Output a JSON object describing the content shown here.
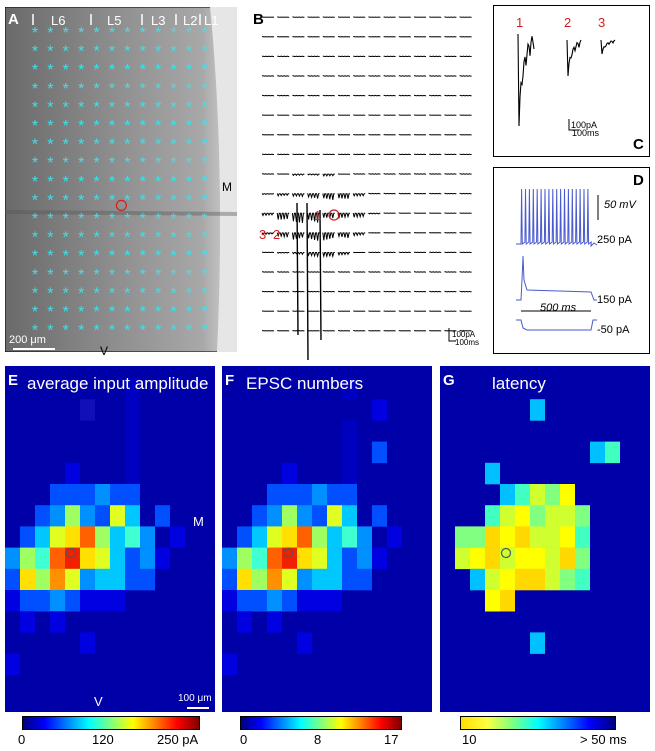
{
  "panels": {
    "A": {
      "label": "A",
      "layers": [
        "L6",
        "L5",
        "L3",
        "L2",
        "L1"
      ],
      "orient_m": "M",
      "orient_v": "V",
      "scalebar": "200 μm",
      "grid_cols": 12,
      "grid_rows": 17,
      "site_marker": [
        9,
        6
      ]
    },
    "B": {
      "label": "B",
      "scale_pa": "100pA",
      "scale_ms": "100ms",
      "markers": [
        "1",
        "2",
        "3"
      ]
    },
    "C": {
      "label": "C",
      "traces": [
        "1",
        "2",
        "3"
      ],
      "scale_pa": "100pA",
      "scale_ms": "100ms"
    },
    "D": {
      "label": "D",
      "scale_mv": "50 mV",
      "duration": "500 ms",
      "currents": [
        "250 pA",
        "150 pA",
        "-50 pA"
      ]
    },
    "E": {
      "label": "E",
      "title": "average input amplitude",
      "orient_m": "M",
      "orient_v": "V",
      "scalebar": "100 μm",
      "cb_ticks": [
        "0",
        "120",
        "250 pA"
      ]
    },
    "F": {
      "label": "F",
      "title": "EPSC numbers",
      "cb_ticks": [
        "0",
        "8",
        "17"
      ]
    },
    "G": {
      "label": "G",
      "title": "latency",
      "cb_ticks": [
        "10",
        "> 50 ms"
      ]
    }
  },
  "colors": {
    "heat_bg": "#0000a8",
    "asterisk": "#40e0e8",
    "marker": "#d02020",
    "trace_blue": "#4a5ad0"
  },
  "heatmaps": {
    "E": [
      "........|.....",
      ".....s..|.....",
      "........|.....",
      "........|.....",
      "....a...|.....",
      "...bbbcbb.....",
      "..bcfcbgd.b...",
      ".bdghkfdec.a..",
      "cfeklhgdbca...",
      "bhfmgcddbb....",
      "abbcbaaa......",
      ".a.a..........",
      ".....a........",
      "a.............",
      "..............",
      ".............."
    ],
    "F": [
      "........|.....",
      "..........a...",
      "........|.....",
      "........|.b...",
      "....a...|.....",
      "...bbbcbb.....",
      "..bcfcbgd.b...",
      ".bdghkfdec.a..",
      "cfeklhgdbca...",
      "bhfmgcddbb....",
      "abbcbaaa......",
      ".a.a..........",
      ".....a........",
      "a.............",
      "..............",
      ".............."
    ],
    "G": [
      "..............",
      "......c.......",
      "..............",
      "..........cd..",
      "...c..........",
      "....cdfeg.....",
      "...dfgeffe....",
      ".eehghffgdb...",
      ".fghfggfhe....",
      "..cfghhfed....",
      "...gh.........",
      "..............",
      "......c.......",
      "..............",
      "..............",
      ".............."
    ]
  }
}
